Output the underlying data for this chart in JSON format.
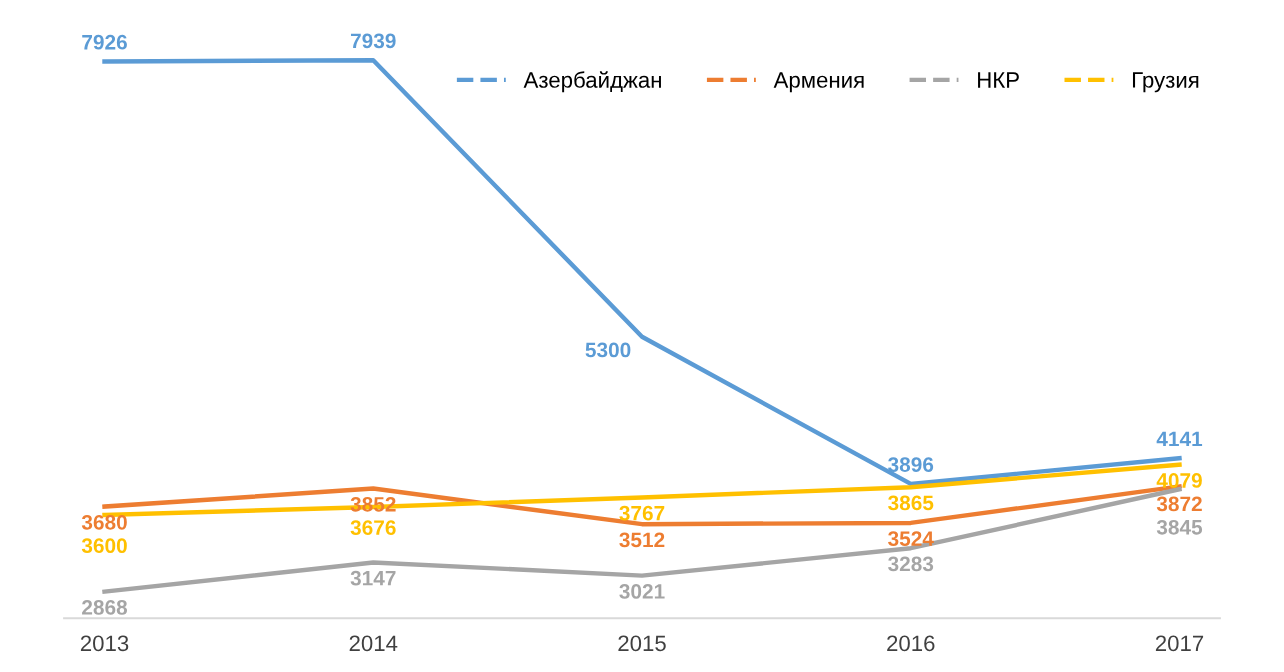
{
  "chart_data": {
    "type": "line",
    "categories": [
      "2013",
      "2014",
      "2015",
      "2016",
      "2017"
    ],
    "series": [
      {
        "name": "Азербайджан",
        "color": "#5b9bd5",
        "values": [
          7926,
          7939,
          5300,
          3896,
          4141
        ]
      },
      {
        "name": "Армения",
        "color": "#ed7d31",
        "values": [
          3680,
          3852,
          3512,
          3524,
          3872
        ]
      },
      {
        "name": "НКР",
        "color": "#a5a5a5",
        "values": [
          2868,
          3147,
          3021,
          3283,
          3845
        ]
      },
      {
        "name": "Грузия",
        "color": "#ffc000",
        "values": [
          3600,
          3676,
          3767,
          3865,
          4079
        ]
      }
    ],
    "tick_labels": "x",
    "data_labels": true,
    "legend": "top right",
    "grid": false,
    "marker": "none",
    "line_style": "solid"
  }
}
